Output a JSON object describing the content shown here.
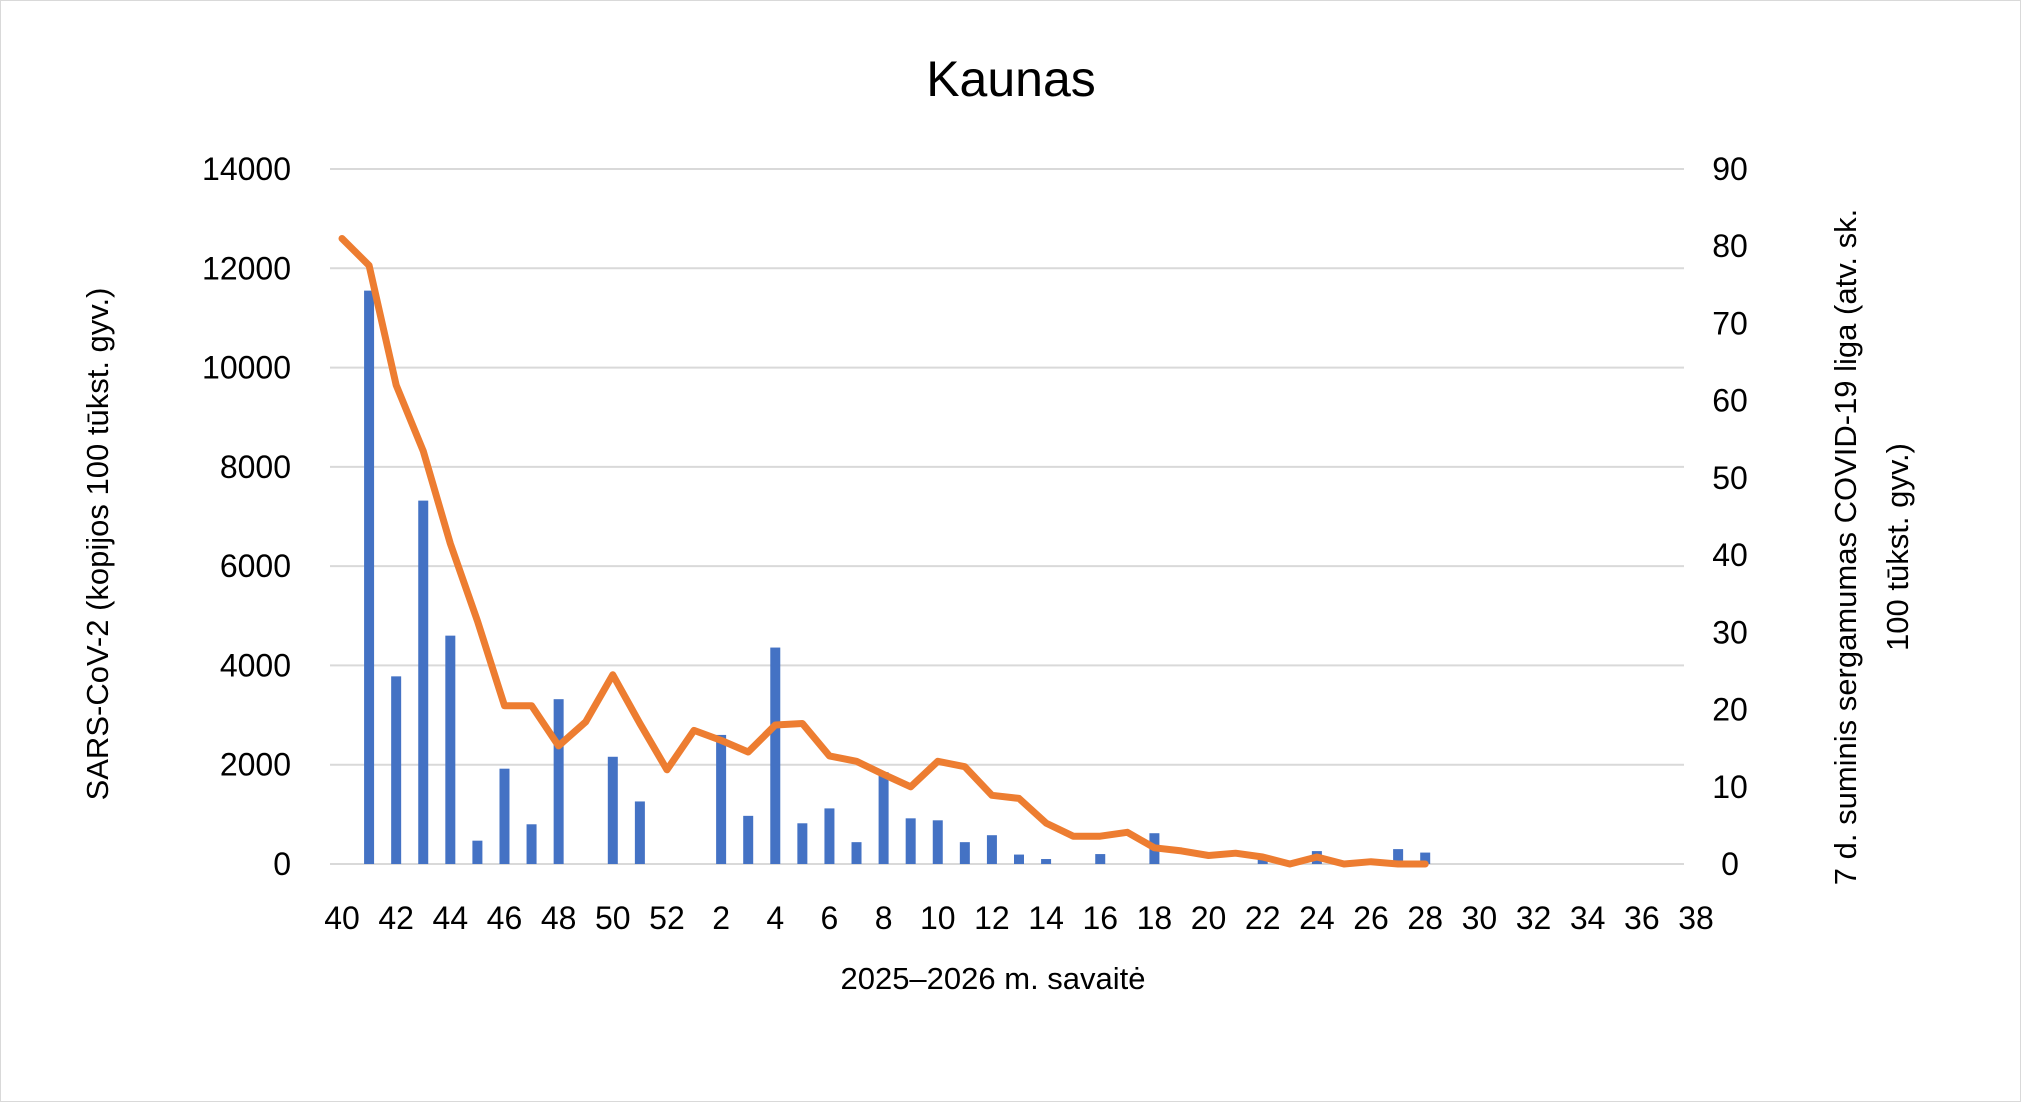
{
  "chart_data": {
    "type": "bar",
    "title": "Kaunas",
    "xlabel": "2025–2026 m. savaitė",
    "ylabel_left": "SARS-CoV-2  (kopijos 100 tūkst. gyv.)",
    "ylabel_right": "7 d. suminis sergamumas COVID-19 liga (atv. sk. 100 tūkst. gyv.)",
    "ylabel_right_lines": [
      "7 d. suminis sergamumas COVID-19 liga (atv. sk.",
      "100 tūkst. gyv.)"
    ],
    "ylim_left": [
      0,
      14000
    ],
    "ylim_right": [
      0,
      90
    ],
    "yticks_left": [
      "0",
      "2000",
      "4000",
      "6000",
      "8000",
      "10000",
      "12000",
      "14000"
    ],
    "yticks_right": [
      "0",
      "10",
      "20",
      "30",
      "40",
      "50",
      "60",
      "70",
      "80",
      "90"
    ],
    "grid": true,
    "legend": "none",
    "categories": [
      40,
      41,
      42,
      43,
      44,
      45,
      46,
      47,
      48,
      49,
      50,
      51,
      52,
      1,
      2,
      3,
      4,
      5,
      6,
      7,
      8,
      9,
      10,
      11,
      12,
      13,
      14,
      15,
      16,
      17,
      18,
      19,
      20,
      21,
      22,
      23,
      24,
      25,
      26,
      27,
      28,
      29,
      30,
      31,
      32,
      33,
      34,
      35,
      36,
      37,
      38
    ],
    "tick_labels": [
      "40",
      "42",
      "44",
      "46",
      "48",
      "50",
      "52",
      "2",
      "4",
      "6",
      "8",
      "10",
      "12",
      "14",
      "16",
      "18",
      "20",
      "22",
      "24",
      "26",
      "28",
      "30",
      "32",
      "34",
      "36",
      "38"
    ],
    "series": [
      {
        "type": "bar",
        "axis": "left",
        "color": "#4472c4",
        "values": [
          null,
          11550,
          3780,
          7320,
          4600,
          470,
          1920,
          800,
          3320,
          null,
          2160,
          1260,
          null,
          null,
          2600,
          970,
          4360,
          820,
          1120,
          440,
          1850,
          920,
          880,
          440,
          580,
          190,
          100,
          null,
          200,
          null,
          620,
          null,
          null,
          null,
          140,
          null,
          260,
          null,
          null,
          300,
          230,
          null,
          null,
          null,
          null,
          null,
          null,
          null,
          null,
          null,
          null
        ]
      },
      {
        "type": "line",
        "axis": "right",
        "color": "#ed7d31",
        "values": [
          81,
          77.5,
          62,
          53.5,
          41.5,
          31.5,
          20.5,
          20.5,
          15.3,
          18.4,
          24.5,
          18.2,
          12.2,
          17.3,
          16,
          14.5,
          18,
          18.2,
          14,
          13.3,
          11.6,
          10,
          13.3,
          12.6,
          8.9,
          8.5,
          5.3,
          3.6,
          3.6,
          4.1,
          2.1,
          1.7,
          1.1,
          1.4,
          0.9,
          0,
          0.9,
          0,
          0.3,
          0,
          0,
          null,
          null,
          null,
          null,
          null,
          null,
          null,
          null,
          null,
          null
        ]
      }
    ]
  }
}
